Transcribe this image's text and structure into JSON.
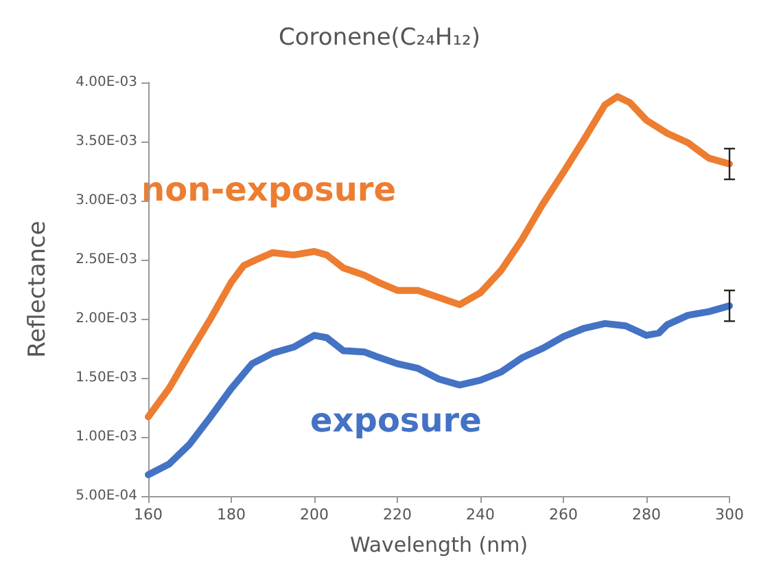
{
  "chart_data": {
    "type": "line",
    "title": "Coronene(C₂₄H₁₂)",
    "xlabel": "Wavelength (nm)",
    "ylabel": "Reflectance",
    "xlim": [
      160,
      300
    ],
    "xticks": [
      160,
      180,
      200,
      220,
      240,
      260,
      280,
      300
    ],
    "ylim": [
      0.0005,
      0.004
    ],
    "yticks": [
      {
        "value": 0.0005,
        "label": "5.00E-04"
      },
      {
        "value": 0.001,
        "label": "1.00E-03"
      },
      {
        "value": 0.0015,
        "label": "1.50E-03"
      },
      {
        "value": 0.002,
        "label": "2.00E-03"
      },
      {
        "value": 0.0025,
        "label": "2.50E-03"
      },
      {
        "value": 0.003,
        "label": "3.00E-03"
      },
      {
        "value": 0.0035,
        "label": "3.50E-03"
      },
      {
        "value": 0.004,
        "label": "4.00E-03"
      }
    ],
    "grid": false,
    "legend": false,
    "series": [
      {
        "name": "non-exposure",
        "color": "#ed7d31",
        "x": [
          160,
          165,
          170,
          175,
          180,
          183,
          186,
          190,
          195,
          200,
          203,
          207,
          212,
          216,
          220,
          225,
          230,
          235,
          240,
          245,
          250,
          255,
          260,
          265,
          270,
          273,
          276,
          280,
          285,
          290,
          295,
          300
        ],
        "values": [
          0.00117,
          0.00141,
          0.00171,
          0.002,
          0.00231,
          0.00245,
          0.0025,
          0.00256,
          0.00254,
          0.00257,
          0.00254,
          0.00243,
          0.00237,
          0.0023,
          0.00224,
          0.00224,
          0.00218,
          0.00212,
          0.00222,
          0.00241,
          0.00267,
          0.00297,
          0.00324,
          0.00352,
          0.00381,
          0.00388,
          0.00383,
          0.00368,
          0.00357,
          0.00349,
          0.00336,
          0.00331
        ],
        "errors": [
          null,
          null,
          null,
          null,
          null,
          null,
          null,
          null,
          null,
          null,
          null,
          null,
          null,
          null,
          null,
          null,
          null,
          null,
          null,
          null,
          null,
          null,
          null,
          null,
          null,
          null,
          null,
          null,
          null,
          null,
          null,
          0.00013
        ]
      },
      {
        "name": "exposure",
        "color": "#4472c4",
        "x": [
          160,
          165,
          170,
          175,
          180,
          185,
          190,
          195,
          200,
          203,
          207,
          212,
          215,
          220,
          225,
          230,
          235,
          240,
          245,
          250,
          255,
          260,
          265,
          270,
          275,
          280,
          283,
          285,
          290,
          295,
          300
        ],
        "values": [
          0.00068,
          0.00077,
          0.00094,
          0.00117,
          0.00141,
          0.00162,
          0.00171,
          0.00176,
          0.00186,
          0.00184,
          0.00173,
          0.00172,
          0.00168,
          0.00162,
          0.00158,
          0.00149,
          0.00144,
          0.00148,
          0.00155,
          0.00167,
          0.00175,
          0.00185,
          0.00192,
          0.00196,
          0.00194,
          0.00186,
          0.00188,
          0.00195,
          0.00203,
          0.00206,
          0.00211
        ],
        "errors": [
          null,
          null,
          null,
          null,
          null,
          null,
          null,
          null,
          null,
          null,
          null,
          null,
          null,
          null,
          null,
          null,
          null,
          null,
          null,
          null,
          null,
          null,
          null,
          null,
          null,
          null,
          null,
          null,
          null,
          null,
          0.00013
        ]
      }
    ]
  }
}
